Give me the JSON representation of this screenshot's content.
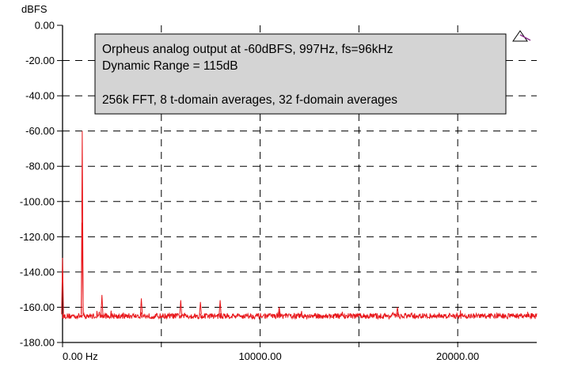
{
  "chart_data": {
    "type": "line",
    "ylabel": "dBFS",
    "x_unit_label": "0.00 Hz",
    "xlim": [
      0,
      24000
    ],
    "ylim": [
      -180,
      0
    ],
    "x_ticks": [
      0,
      5000,
      10000,
      15000,
      20000
    ],
    "x_tick_labels": [
      "0.00 Hz",
      "",
      "10000.00",
      "",
      "20000.00"
    ],
    "y_ticks": [
      0,
      -20,
      -40,
      -60,
      -80,
      -100,
      -120,
      -140,
      -160,
      -180
    ],
    "y_tick_labels": [
      "0.00",
      "-20.00",
      "-40.00",
      "-60.00",
      "-80.00",
      "-100.00",
      "-120.00",
      "-140.00",
      "-160.00",
      "-180.00"
    ],
    "grid": true,
    "noise_floor_dbfs": -165,
    "annotation_lines": [
      "Orpheus analog output at -60dBFS, 997Hz, fs=96kHz",
      "Dynamic Range = 115dB",
      "",
      "256k FFT, 8 t-domain averages, 32 f-domain averages"
    ],
    "series": [
      {
        "color": "#e8171b",
        "peaks": [
          {
            "x": 0,
            "y": -132
          },
          {
            "x": 997,
            "y": -60
          },
          {
            "x": 1000,
            "y": -112
          },
          {
            "x": 1994,
            "y": -153
          },
          {
            "x": 3988,
            "y": -155
          },
          {
            "x": 5982,
            "y": -156
          },
          {
            "x": 6979,
            "y": -157
          },
          {
            "x": 7976,
            "y": -156
          },
          {
            "x": 10967,
            "y": -160
          },
          {
            "x": 16950,
            "y": -160
          }
        ]
      }
    ]
  },
  "colors": {
    "trace": "#e8171b",
    "annotation_bg": "#d4d4d4",
    "marker": "#8a2a8a"
  },
  "icons": {
    "corner_marker": "triangle-marker-icon"
  }
}
